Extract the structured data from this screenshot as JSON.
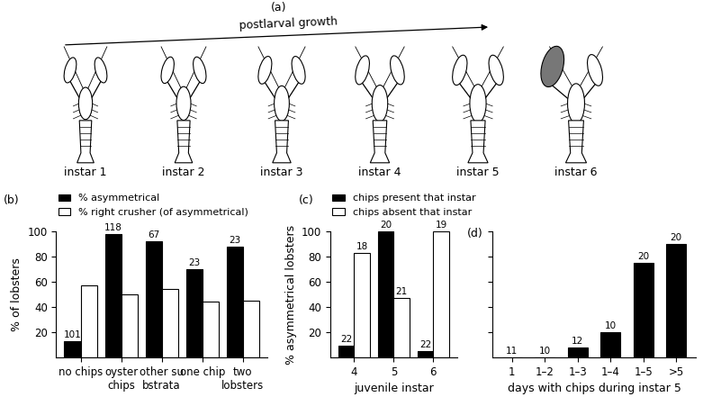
{
  "diagram": {
    "label": "(a)",
    "arrow_label": "postlarval growth",
    "stages": [
      "instar 1",
      "instar 2",
      "instar 3",
      "instar 4",
      "instar 5",
      "instar 6"
    ]
  },
  "chart_data": [
    {
      "type": "bar",
      "panel": "(b)",
      "categories": [
        "no chips",
        "oyster chips",
        "other substrata",
        "one chip",
        "two lobsters"
      ],
      "series": [
        {
          "name": "% asymmetrical",
          "color": "#000000",
          "values": [
            13,
            98,
            92,
            70,
            88
          ],
          "n": [
            101,
            118,
            67,
            23,
            23
          ]
        },
        {
          "name": "% right crusher (of asymmetrical)",
          "color": "#ffffff",
          "values": [
            57,
            50,
            54,
            44,
            45
          ]
        }
      ],
      "ylabel": "% of lobsters",
      "ylim": [
        0,
        100
      ],
      "yticks": [
        20,
        40,
        60,
        80,
        100
      ],
      "legend": "lower left"
    },
    {
      "type": "bar",
      "panel": "(c)",
      "categories": [
        "4",
        "5",
        "6"
      ],
      "series": [
        {
          "name": "chips present that instar",
          "color": "#000000",
          "values": [
            9,
            100,
            5
          ],
          "n": [
            22,
            20,
            22
          ]
        },
        {
          "name": "chips absent that instar",
          "color": "#ffffff",
          "values": [
            83,
            47,
            100
          ],
          "n": [
            18,
            21,
            19
          ]
        }
      ],
      "xlabel": "juvenile instar",
      "ylabel": "% asymmetrical lobsters",
      "ylim": [
        0,
        100
      ],
      "yticks": [
        20,
        40,
        60,
        80,
        100
      ],
      "legend": "lower left"
    },
    {
      "type": "bar",
      "panel": "(d)",
      "categories": [
        "1",
        "1–2",
        "1–3",
        "1–4",
        "1–5",
        ">5"
      ],
      "values": [
        0,
        0,
        8,
        20,
        75,
        90
      ],
      "n": [
        11,
        10,
        12,
        10,
        20,
        20
      ],
      "color": "#000000",
      "xlabel": "days with chips during instar 5",
      "ylim": [
        0,
        100
      ],
      "yticks": [
        20,
        40,
        60,
        80,
        100
      ],
      "tick_labels": "x"
    }
  ]
}
